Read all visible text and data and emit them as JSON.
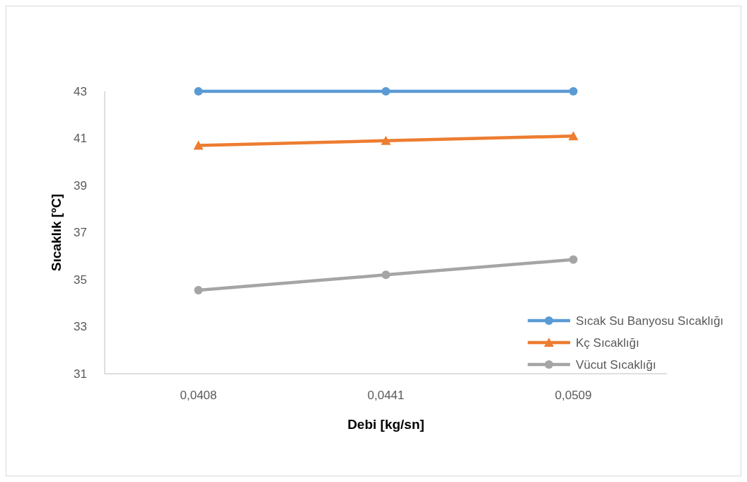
{
  "chart_data": {
    "type": "line",
    "xlabel": "Debi [kg/sn]",
    "ylabel": "Sıcaklık [ºC]",
    "categories": [
      "0,0408",
      "0,0441",
      "0,0509"
    ],
    "ylim": [
      31,
      43
    ],
    "yticks": [
      31,
      33,
      35,
      37,
      39,
      41,
      43
    ],
    "grid": false,
    "legend": "bottom right",
    "series": [
      {
        "name": "Sıcak Su Banyosu Sıcaklığı",
        "color": "#5b9bd5",
        "marker": "circle",
        "values": [
          43,
          43,
          43
        ]
      },
      {
        "name": "Kç Sıcaklığı",
        "color": "#ed7d31",
        "marker": "triangle",
        "values": [
          40.7,
          40.9,
          41.1
        ]
      },
      {
        "name": "Vücut Sıcaklığı",
        "color": "#a5a5a5",
        "marker": "circle",
        "values": [
          34.55,
          35.2,
          35.85
        ]
      }
    ]
  }
}
